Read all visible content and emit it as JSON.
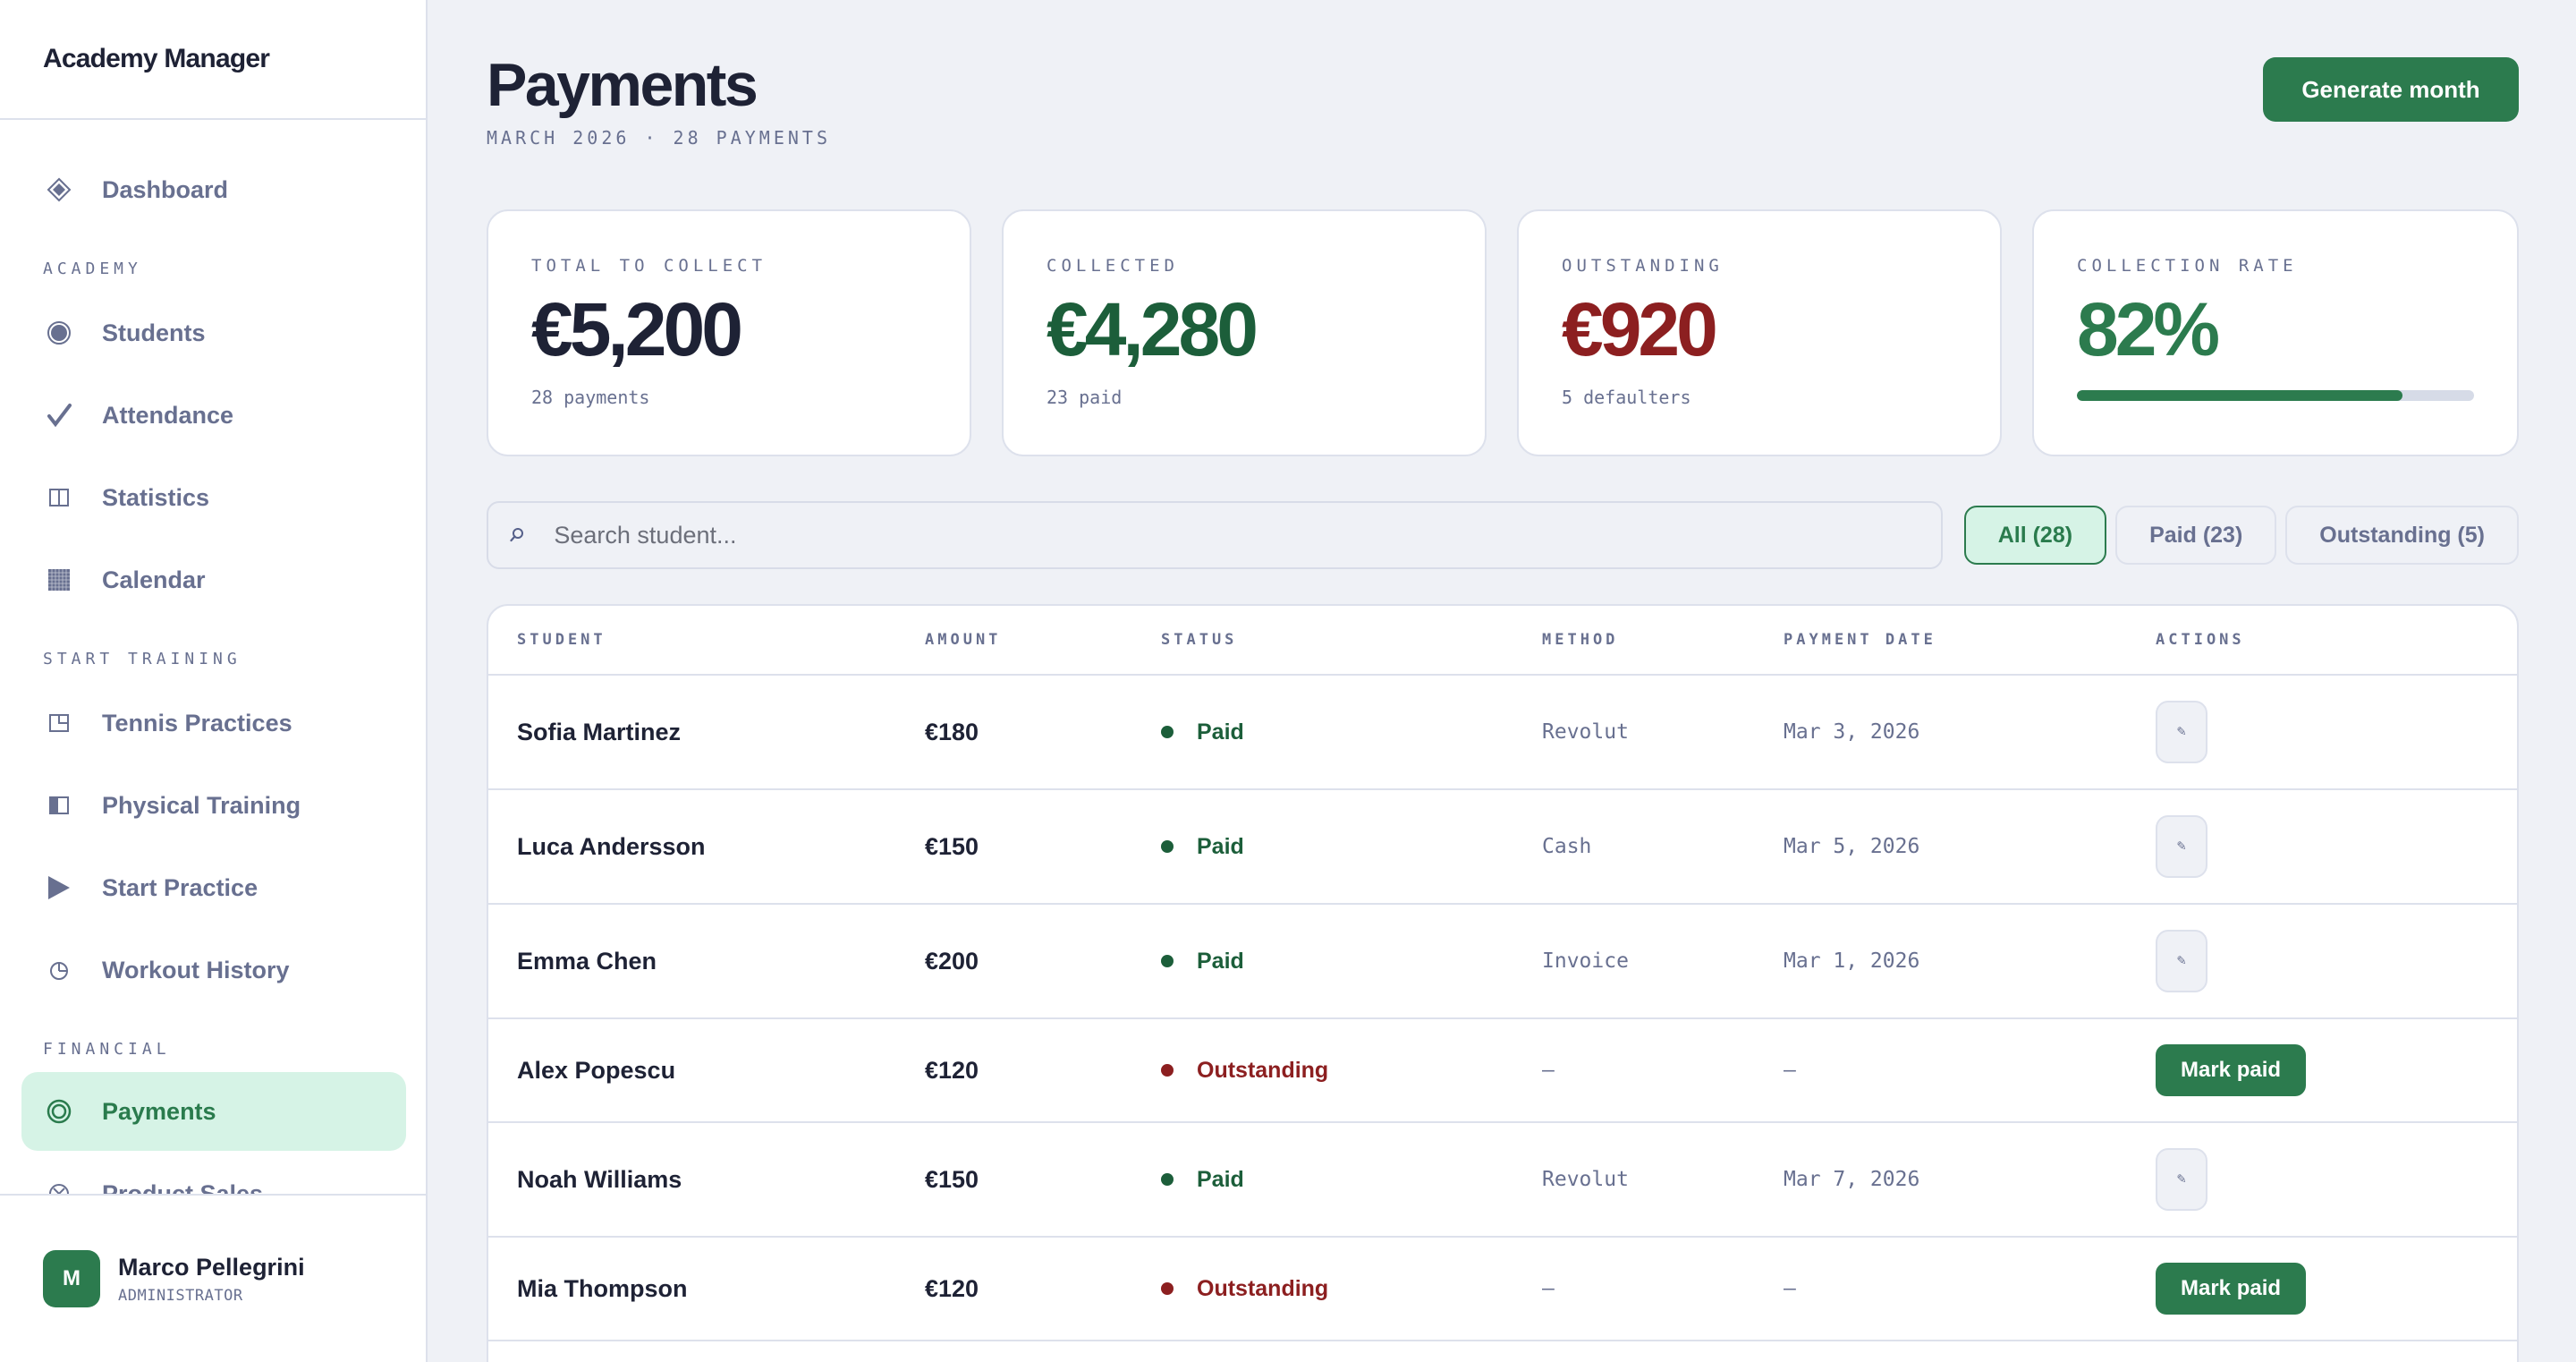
{
  "sidebar": {
    "brand": "Academy Manager",
    "items": [
      {
        "label": "Dashboard",
        "icon": "diamond-icon"
      },
      {
        "label": "Students",
        "icon": "circle-dot-icon"
      },
      {
        "label": "Attendance",
        "icon": "checkmark-icon"
      },
      {
        "label": "Statistics",
        "icon": "columns-icon"
      },
      {
        "label": "Calendar",
        "icon": "grid-icon"
      },
      {
        "label": "Tennis Practices",
        "icon": "square-corner-icon"
      },
      {
        "label": "Physical Training",
        "icon": "half-square-icon"
      },
      {
        "label": "Start Practice",
        "icon": "play-icon"
      },
      {
        "label": "Workout History",
        "icon": "clock-icon"
      },
      {
        "label": "Payments",
        "icon": "target-icon"
      },
      {
        "label": "Product Sales",
        "icon": "circle-x-icon"
      }
    ],
    "sections": {
      "academy": "ACADEMY",
      "start_training": "START TRAINING",
      "financial": "FINANCIAL"
    },
    "user": {
      "initial": "M",
      "name": "Marco Pellegrini",
      "role": "ADMINISTRATOR"
    }
  },
  "header": {
    "title": "Payments",
    "subtitle": "MARCH 2026 · 28 PAYMENTS",
    "generate_label": "Generate month"
  },
  "stats": [
    {
      "label": "TOTAL TO COLLECT",
      "value": "€5,200",
      "sub": "28 payments"
    },
    {
      "label": "COLLECTED",
      "value": "€4,280",
      "sub": "23 paid"
    },
    {
      "label": "OUTSTANDING",
      "value": "€920",
      "sub": "5 defaulters"
    },
    {
      "label": "COLLECTION RATE",
      "value": "82%",
      "progress": 82
    }
  ],
  "search": {
    "placeholder": "Search student...",
    "value": ""
  },
  "filters": [
    {
      "label": "All (28)",
      "active": true
    },
    {
      "label": "Paid (23)",
      "active": false
    },
    {
      "label": "Outstanding (5)",
      "active": false
    }
  ],
  "table": {
    "columns": [
      "STUDENT",
      "AMOUNT",
      "STATUS",
      "METHOD",
      "PAYMENT DATE",
      "ACTIONS"
    ],
    "rows": [
      {
        "student": "Sofia Martinez",
        "amount": "€180",
        "status": "Paid",
        "method": "Revolut",
        "date": "Mar 3, 2026",
        "action": "edit"
      },
      {
        "student": "Luca Andersson",
        "amount": "€150",
        "status": "Paid",
        "method": "Cash",
        "date": "Mar 5, 2026",
        "action": "edit"
      },
      {
        "student": "Emma Chen",
        "amount": "€200",
        "status": "Paid",
        "method": "Invoice",
        "date": "Mar 1, 2026",
        "action": "edit"
      },
      {
        "student": "Alex Popescu",
        "amount": "€120",
        "status": "Outstanding",
        "method": "–",
        "date": "–",
        "action": "Mark paid"
      },
      {
        "student": "Noah Williams",
        "amount": "€150",
        "status": "Paid",
        "method": "Revolut",
        "date": "Mar 7, 2026",
        "action": "edit"
      },
      {
        "student": "Mia Thompson",
        "amount": "€120",
        "status": "Outstanding",
        "method": "–",
        "date": "–",
        "action": "Mark paid"
      }
    ]
  },
  "colors": {
    "accent": "#2c7b4e",
    "accent_light": "#d6f3e6",
    "paid": "#1c5e3a",
    "outstanding": "#8c1f20",
    "muted": "#687090",
    "border": "#dde1ec",
    "background": "#eff1f6"
  }
}
